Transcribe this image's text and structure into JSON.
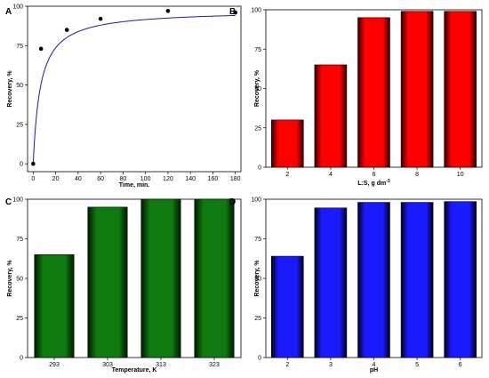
{
  "chart_data": [
    {
      "panel": "A",
      "type": "scatter",
      "x": [
        0,
        7,
        30,
        60,
        120,
        180
      ],
      "y": [
        0,
        73,
        85,
        92,
        97,
        96
      ],
      "fit_curve": true,
      "xlabel": "Time, min.",
      "ylabel": "Recovery, %",
      "xlim": [
        -5,
        185
      ],
      "ylim": [
        -5,
        100
      ],
      "xticks": [
        "0",
        "20",
        "40",
        "60",
        "80",
        "100",
        "120",
        "140",
        "160",
        "180"
      ],
      "yticks": [
        "0",
        "25",
        "50",
        "75",
        "100"
      ],
      "colors": {
        "points": "#000000",
        "curve": "#1a1aa6"
      }
    },
    {
      "panel": "B",
      "type": "bar",
      "categories": [
        "2",
        "4",
        "6",
        "8",
        "10"
      ],
      "values": [
        30,
        65,
        95,
        99,
        99
      ],
      "xlabel": "L:S, g dm",
      "xlabel_sup": "-3",
      "ylabel": "Recovery, %",
      "ylim": [
        0,
        100
      ],
      "yticks": [
        "0",
        "25",
        "50",
        "75",
        "100"
      ],
      "colors": {
        "bar": "#ff0000",
        "bar_dark": "#330000"
      }
    },
    {
      "panel": "C",
      "type": "bar",
      "categories": [
        "293",
        "303",
        "313",
        "323"
      ],
      "values": [
        65,
        95,
        100,
        100
      ],
      "xlabel": "Temperature, K",
      "ylabel": "Recovery, %",
      "ylim": [
        0,
        100
      ],
      "yticks": [
        "0",
        "25",
        "50",
        "75",
        "100"
      ],
      "colors": {
        "bar": "#0f7a0f",
        "bar_dark": "#001a00"
      }
    },
    {
      "panel": "D",
      "type": "bar",
      "categories": [
        "2",
        "3",
        "4",
        "5",
        "6"
      ],
      "values": [
        64,
        94.5,
        98,
        98,
        98.5
      ],
      "xlabel": "pH",
      "ylabel": "Recovery, %",
      "ylim": [
        0,
        100
      ],
      "yticks": [
        "0",
        "25",
        "50",
        "75",
        "100"
      ],
      "colors": {
        "bar": "#1a1aff",
        "bar_dark": "#00001a"
      }
    }
  ]
}
